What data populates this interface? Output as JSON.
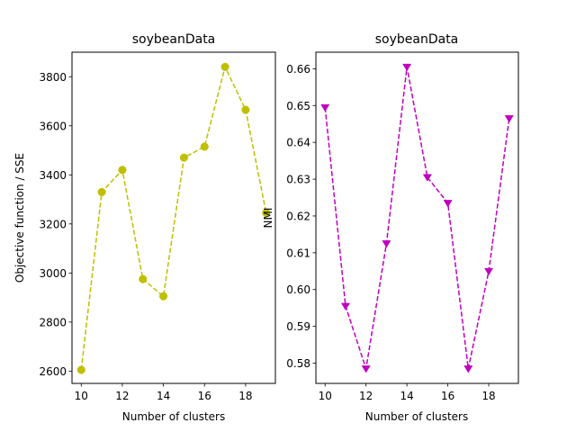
{
  "chart_data": [
    {
      "type": "line",
      "title": "soybeanData",
      "xlabel": "Number of clusters",
      "ylabel": "Objective function / SSE",
      "x": [
        10,
        11,
        12,
        13,
        14,
        15,
        16,
        17,
        18,
        19
      ],
      "xlim": [
        9.55,
        19.45
      ],
      "ylim": [
        2550,
        3900
      ],
      "xticks": [
        10,
        12,
        14,
        16,
        18
      ],
      "yticks": [
        2600,
        2800,
        3000,
        3200,
        3400,
        3600,
        3800
      ],
      "grid": false,
      "series": [
        {
          "values": [
            2605,
            3330,
            3420,
            2975,
            2905,
            3470,
            3515,
            3840,
            3665,
            3245
          ],
          "color": "#bfbf00",
          "line_style": "dashed",
          "marker": "circle"
        }
      ]
    },
    {
      "type": "line",
      "title": "soybeanData",
      "xlabel": "Number of clusters",
      "ylabel": "NMI",
      "x": [
        10,
        11,
        12,
        13,
        14,
        15,
        16,
        17,
        18,
        19
      ],
      "xlim": [
        9.55,
        19.45
      ],
      "ylim": [
        0.5745,
        0.6645
      ],
      "xticks": [
        10,
        12,
        14,
        16,
        18
      ],
      "yticks": [
        0.58,
        0.59,
        0.6,
        0.61,
        0.62,
        0.63,
        0.64,
        0.65,
        0.66
      ],
      "ytick_decimals": 2,
      "grid": false,
      "series": [
        {
          "values": [
            0.6495,
            0.5955,
            0.5785,
            0.6125,
            0.6605,
            0.6305,
            0.6235,
            0.5785,
            0.605,
            0.6465
          ],
          "color": "#bf00bf",
          "line_style": "dashed",
          "marker": "triangle-down"
        }
      ]
    }
  ]
}
